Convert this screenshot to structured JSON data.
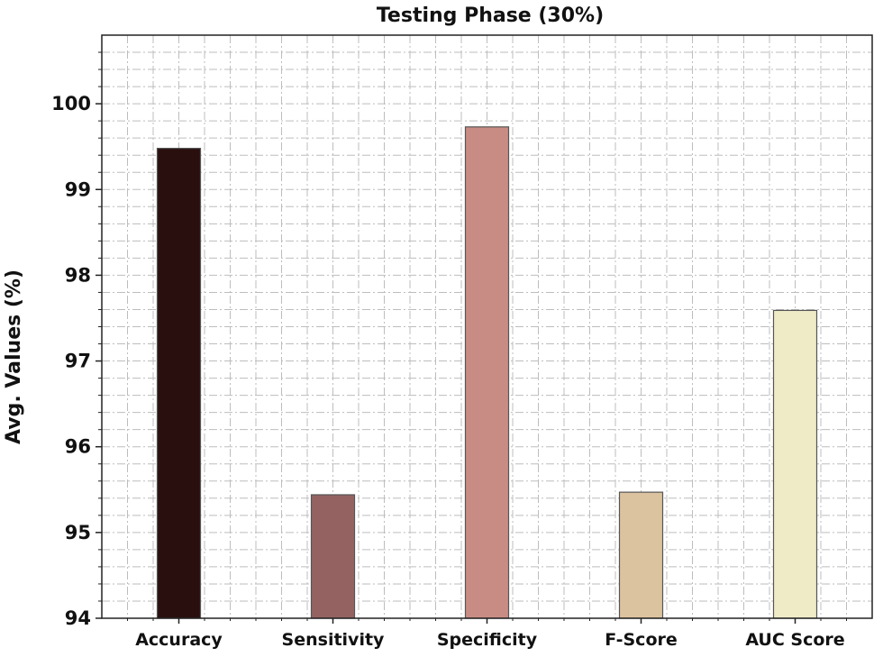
{
  "chart_data": {
    "type": "bar",
    "title": "Testing Phase (30%)",
    "xlabel": "",
    "ylabel": "Avg. Values (%)",
    "categories": [
      "Accuracy",
      "Sensitivity",
      "Specificity",
      "F-Score",
      "AUC Score"
    ],
    "values": [
      99.48,
      95.44,
      99.73,
      95.47,
      97.59
    ],
    "colors": [
      "#2a0f0f",
      "#946361",
      "#c98c84",
      "#dcc39f",
      "#eeebc6"
    ],
    "ylim": [
      94,
      100.8
    ],
    "yticks": [
      "94",
      "95",
      "96",
      "97",
      "98",
      "99",
      "100"
    ],
    "grid": true,
    "legend": "none"
  }
}
